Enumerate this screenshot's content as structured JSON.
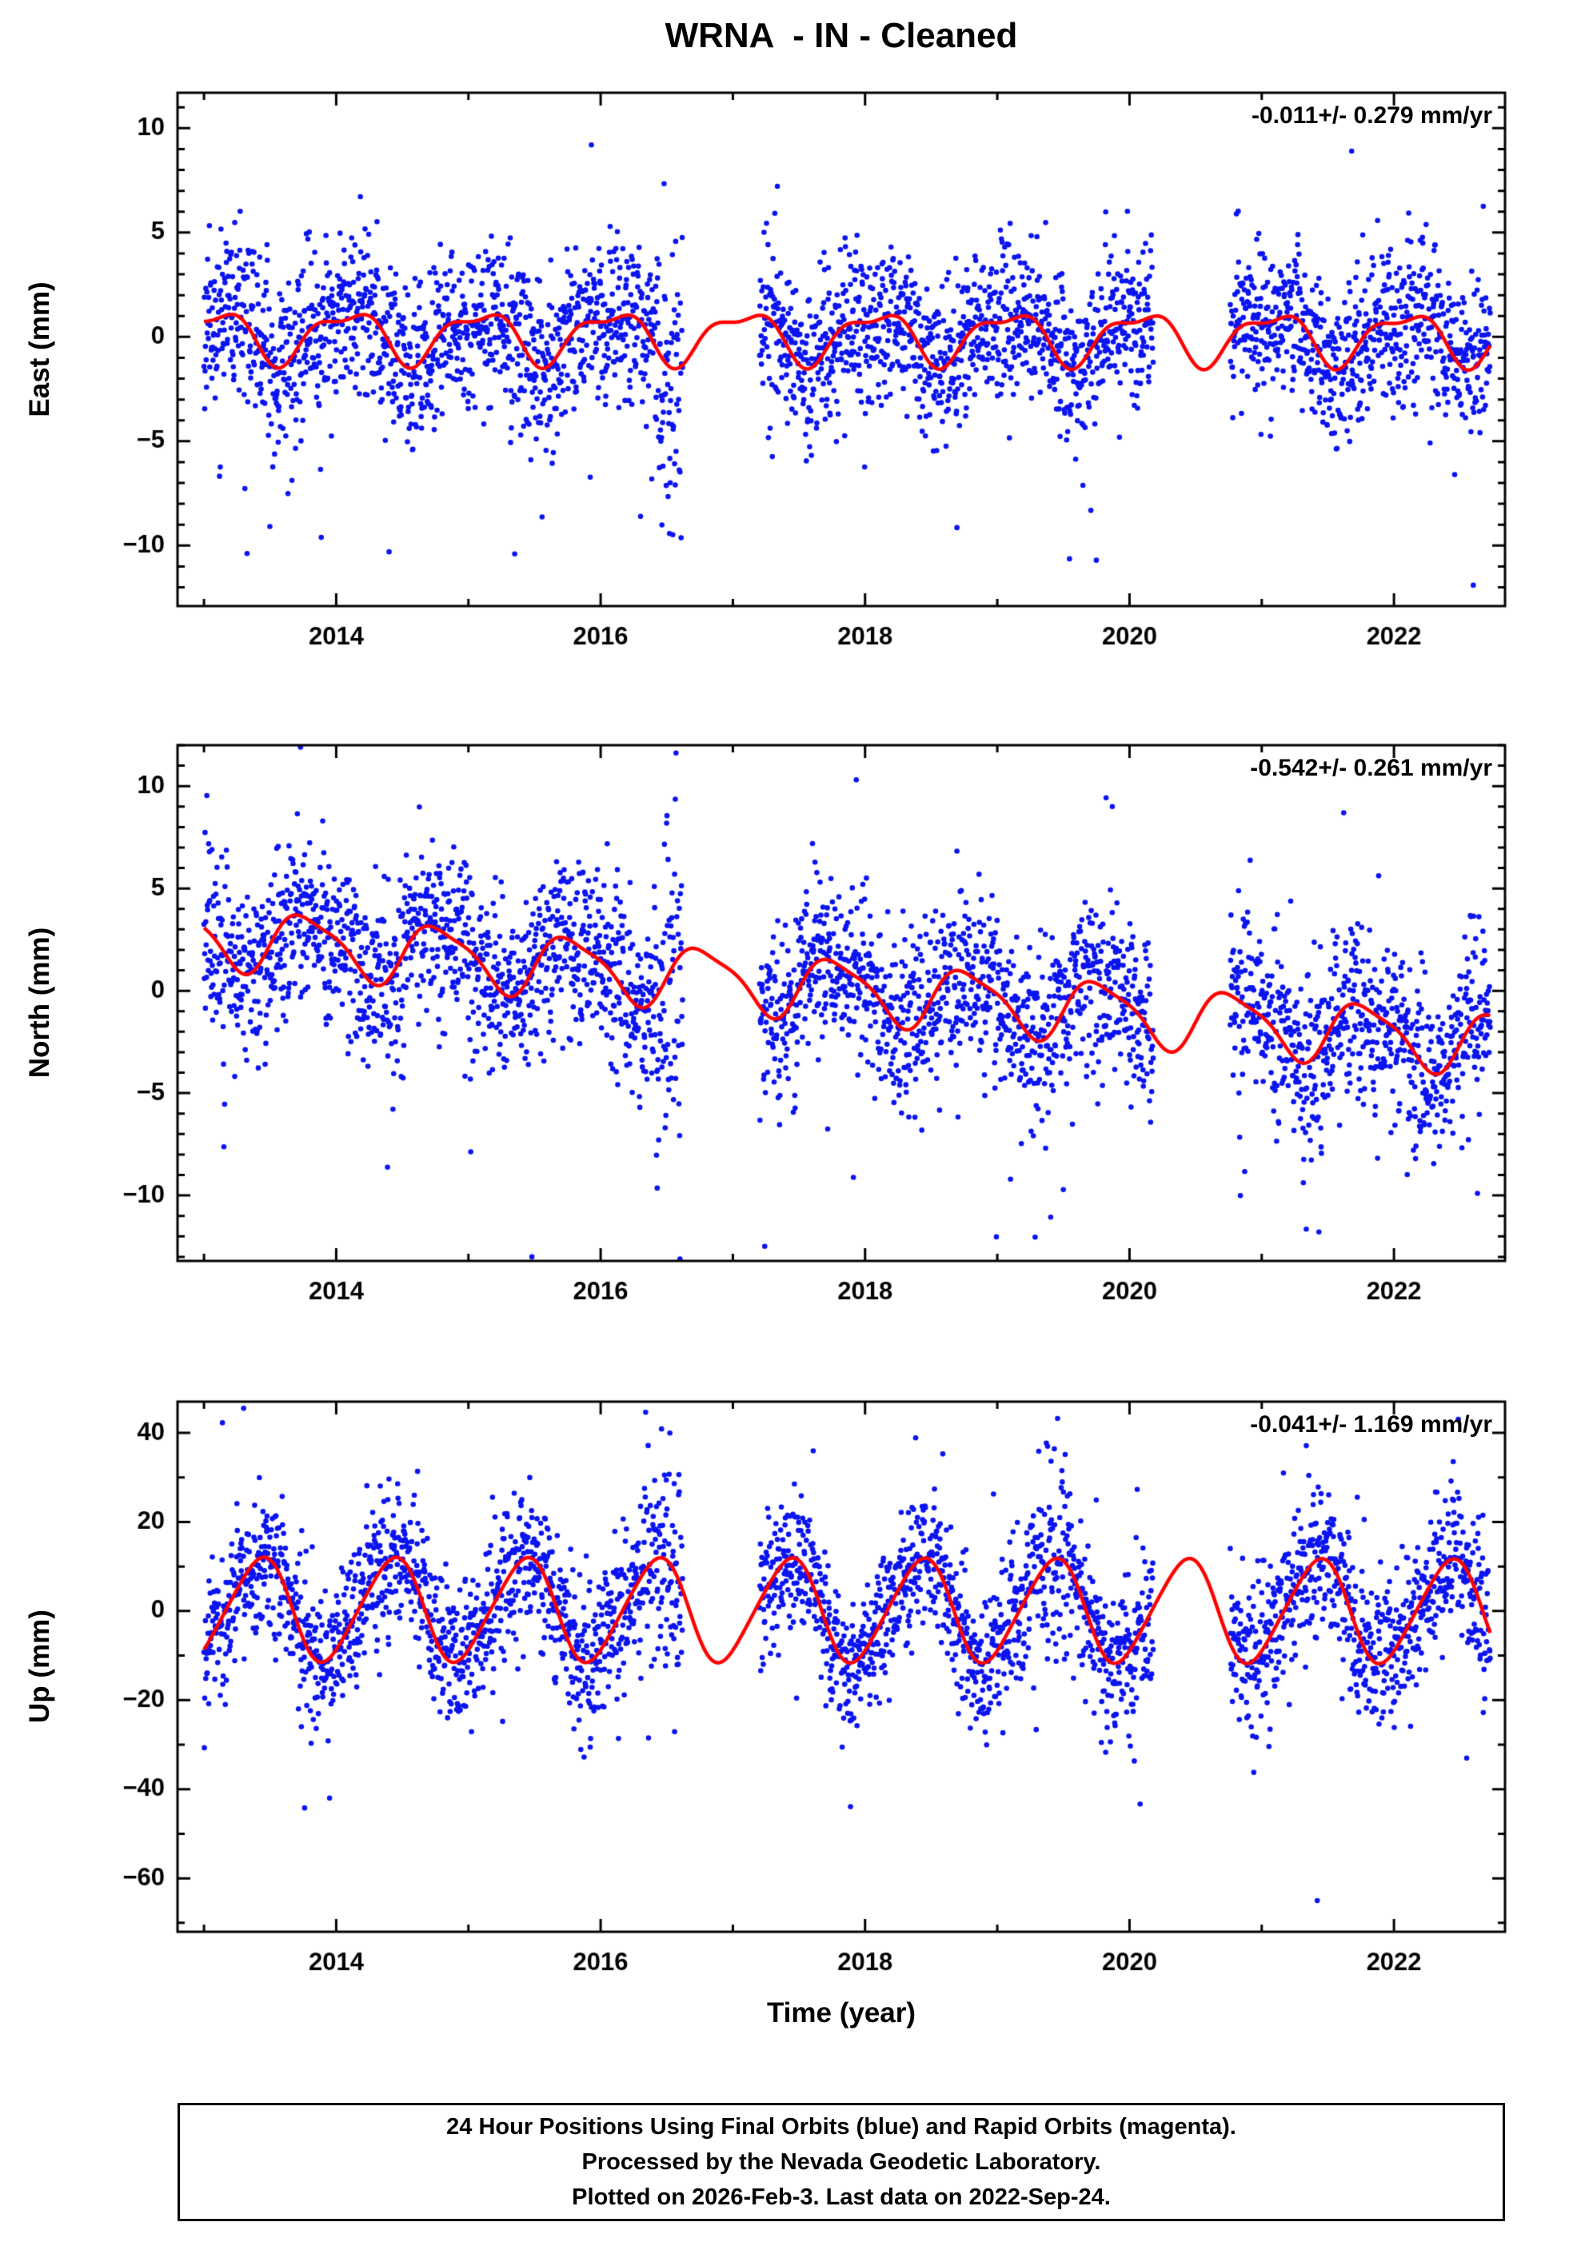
{
  "title": "WRNA  - IN - Cleaned",
  "xlabel": "Time (year)",
  "colors": {
    "points": "#0b14f0",
    "model_line": "#ff0000",
    "frame": "#000000"
  },
  "footer": {
    "line1": "24 Hour Positions Using Final Orbits (blue) and Rapid Orbits (magenta).",
    "line2": "Processed by the Nevada Geodetic Laboratory.",
    "line3": "Plotted on 2026-Feb-3. Last data on 2022-Sep-24."
  },
  "chart_data": [
    {
      "type": "scatter",
      "name": "east",
      "ylabel": "East (mm)",
      "annotation": "-0.011+/- 0.279 mm/yr",
      "xlim": [
        2012.8,
        2022.84
      ],
      "xticks": [
        2014,
        2016,
        2018,
        2020,
        2022
      ],
      "xminor": 1,
      "ylim": [
        -12.9,
        11.7
      ],
      "yticks": [
        -10,
        -5,
        0,
        5,
        10
      ],
      "yminor": 1,
      "model": {
        "intercept": 0.1,
        "trend": -0.011,
        "annual_amp": 1.15,
        "annual_peak": 0.08,
        "semi_amp": 0.45,
        "semi_peak": 0.3
      },
      "scatter": {
        "seed": 11,
        "start": 2013.0,
        "end": 2022.73,
        "sigma": 1.9,
        "gaps": [
          [
            2016.62,
            2017.2
          ],
          [
            2020.18,
            2020.76
          ]
        ],
        "outlier_prob": 0.02,
        "outlier_down_frac": 0.8,
        "outlier_min": 2.5,
        "outlier_max": 8.5,
        "bursts": [
          {
            "t0": 2016.42,
            "t1": 2016.62,
            "sigma": 3.5,
            "bias": -2.5
          }
        ],
        "extra_points": [
          [
            2015.93,
            9.2
          ],
          [
            2021.68,
            8.9
          ],
          [
            2022.6,
            -11.9
          ],
          [
            2014.4,
            -10.3
          ],
          [
            2015.35,
            -10.4
          ]
        ]
      }
    },
    {
      "type": "scatter",
      "name": "north",
      "ylabel": "North (mm)",
      "annotation": "-0.542+/- 0.261 mm/yr",
      "xlim": [
        2012.8,
        2022.84
      ],
      "xticks": [
        2014,
        2016,
        2018,
        2020,
        2022
      ],
      "xminor": 1,
      "ylim": [
        -13.2,
        12.0
      ],
      "yticks": [
        -10,
        -5,
        0,
        5,
        10
      ],
      "yminor": 1,
      "model": {
        "intercept": 2.7,
        "trend": -0.542,
        "annual_amp": 1.45,
        "annual_peak": 0.78,
        "semi_amp": 0.35,
        "semi_peak": 0.1
      },
      "scatter": {
        "seed": 22,
        "start": 2013.0,
        "end": 2022.73,
        "sigma": 2.1,
        "gaps": [
          [
            2016.62,
            2017.2
          ],
          [
            2020.18,
            2020.76
          ]
        ],
        "outlier_prob": 0.02,
        "outlier_down_frac": 0.75,
        "outlier_min": 2.5,
        "outlier_max": 9.0,
        "bursts": [
          {
            "t0": 2016.42,
            "t1": 2016.65,
            "sigma": 4.0,
            "bias": -3.0
          }
        ],
        "extra_points": [
          [
            2013.73,
            11.9
          ],
          [
            2016.6,
            -13.1
          ],
          [
            2019.87,
            9.0
          ],
          [
            2015.48,
            -13.0
          ],
          [
            2021.62,
            8.7
          ]
        ]
      }
    },
    {
      "type": "scatter",
      "name": "up",
      "ylabel": "Up (mm)",
      "annotation": "-0.041+/- 1.169 mm/yr",
      "xlim": [
        2012.8,
        2022.84
      ],
      "xticks": [
        2014,
        2016,
        2018,
        2020,
        2022
      ],
      "xminor": 1,
      "ylim": [
        -72,
        47
      ],
      "yticks": [
        -60,
        -40,
        -20,
        0,
        20,
        40
      ],
      "yminor": 10,
      "model": {
        "intercept": 0.4,
        "trend": -0.041,
        "annual_amp": 11.5,
        "annual_peak": 0.42,
        "semi_amp": 1.3,
        "semi_peak": 0.05
      },
      "scatter": {
        "seed": 33,
        "start": 2013.0,
        "end": 2022.73,
        "sigma": 8.2,
        "gaps": [
          [
            2016.62,
            2017.2
          ],
          [
            2020.18,
            2020.76
          ]
        ],
        "outlier_prob": 0.012,
        "outlier_down_frac": 0.5,
        "outlier_min": 12,
        "outlier_max": 30,
        "bursts": [
          {
            "t0": 2016.3,
            "t1": 2016.6,
            "sigma": 11,
            "bias": 0
          },
          {
            "t0": 2019.25,
            "t1": 2019.55,
            "sigma": 11,
            "bias": 4
          }
        ],
        "extra_points": [
          [
            2021.42,
            -65
          ],
          [
            2013.3,
            45.5
          ],
          [
            2019.38,
            37
          ],
          [
            2013.95,
            -42
          ],
          [
            2022.55,
            -33
          ]
        ]
      }
    }
  ]
}
